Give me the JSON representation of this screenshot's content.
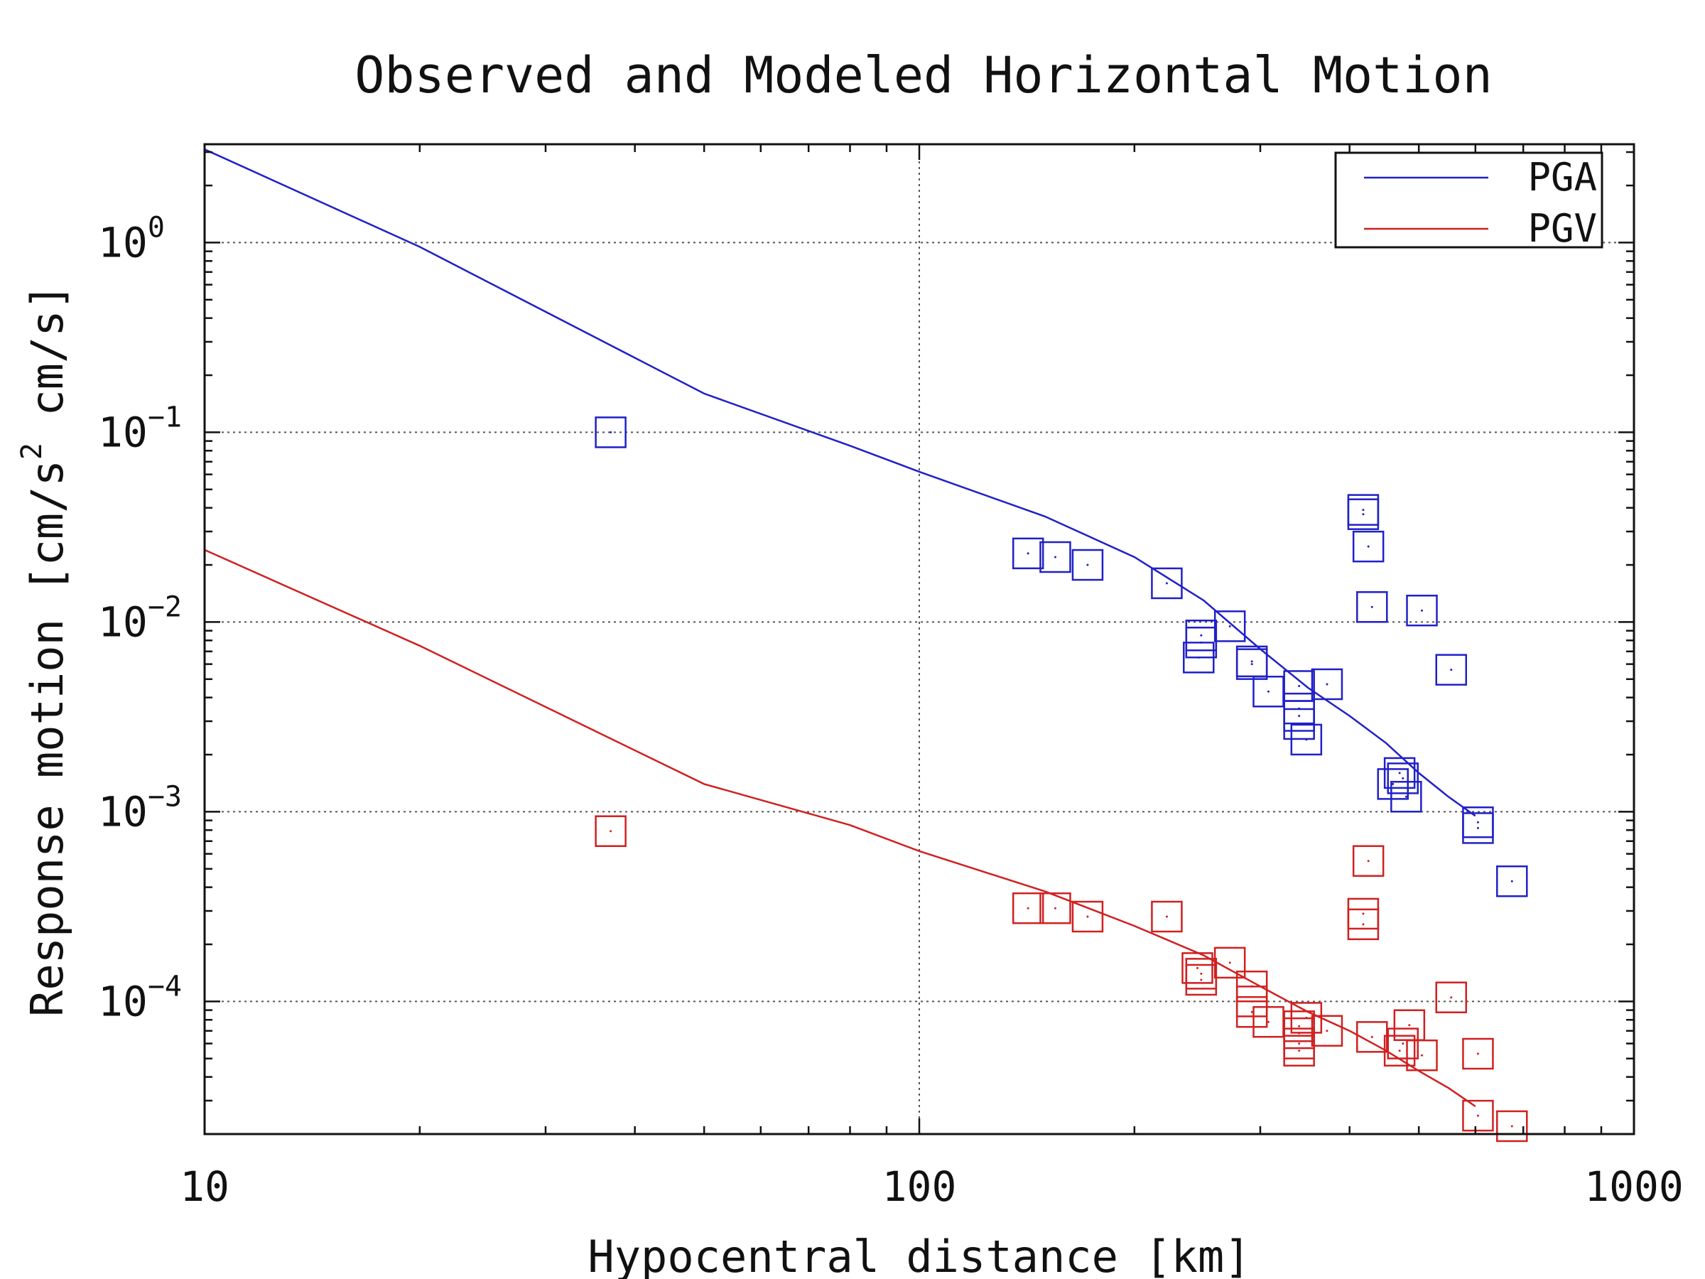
{
  "chart_data": {
    "type": "scatter",
    "title": "Observed and Modeled Horizontal Motion",
    "xlabel": "Hypocentral distance [km]",
    "ylabel": {
      "pre": "Response motion  [cm/s",
      "sup": "2",
      "post": "  cm/s]"
    },
    "x_scale": "log",
    "y_scale": "log",
    "xlim": [
      10,
      1000
    ],
    "ylim": [
      2e-05,
      3.3
    ],
    "grid": true,
    "legend_position": "top-right",
    "x_ticks": [
      {
        "value": 10,
        "label": "10"
      },
      {
        "value": 100,
        "label": "100"
      },
      {
        "value": 1000,
        "label": "1000"
      }
    ],
    "y_ticks": [
      {
        "value": 1,
        "base": "10",
        "exp": "0"
      },
      {
        "value": 0.1,
        "base": "10",
        "exp": "−1"
      },
      {
        "value": 0.01,
        "base": "10",
        "exp": "−2"
      },
      {
        "value": 0.001,
        "base": "10",
        "exp": "−3"
      },
      {
        "value": 0.0001,
        "base": "10",
        "exp": "−4"
      }
    ],
    "series": [
      {
        "name": "PGA",
        "color": "#2020c8",
        "model_line": [
          [
            10,
            3.1
          ],
          [
            20,
            0.95
          ],
          [
            50,
            0.16
          ],
          [
            80,
            0.085
          ],
          [
            100,
            0.062
          ],
          [
            150,
            0.036
          ],
          [
            200,
            0.022
          ],
          [
            250,
            0.013
          ],
          [
            300,
            0.0072
          ],
          [
            350,
            0.0045
          ],
          [
            400,
            0.0032
          ],
          [
            450,
            0.0023
          ],
          [
            500,
            0.0016
          ],
          [
            550,
            0.0012
          ],
          [
            600,
            0.00095
          ]
        ],
        "observed": [
          [
            37,
            0.1
          ],
          [
            142,
            0.023
          ],
          [
            155,
            0.022
          ],
          [
            172,
            0.02
          ],
          [
            222,
            0.016
          ],
          [
            248,
            0.0085
          ],
          [
            248,
            0.0078
          ],
          [
            246,
            0.0065
          ],
          [
            272,
            0.0095
          ],
          [
            292,
            0.0062
          ],
          [
            292,
            0.006
          ],
          [
            308,
            0.0043
          ],
          [
            340,
            0.0046
          ],
          [
            340,
            0.0035
          ],
          [
            340,
            0.0032
          ],
          [
            340,
            0.0029
          ],
          [
            348,
            0.0024
          ],
          [
            372,
            0.0047
          ],
          [
            418,
            0.039
          ],
          [
            418,
            0.037
          ],
          [
            425,
            0.025
          ],
          [
            430,
            0.012
          ],
          [
            505,
            0.0115
          ],
          [
            555,
            0.0056
          ],
          [
            470,
            0.0016
          ],
          [
            475,
            0.0015
          ],
          [
            460,
            0.0014
          ],
          [
            480,
            0.0012
          ],
          [
            605,
            0.00088
          ],
          [
            605,
            0.00082
          ],
          [
            675,
            0.00043
          ]
        ]
      },
      {
        "name": "PGV",
        "color": "#d02020",
        "model_line": [
          [
            10,
            0.024
          ],
          [
            20,
            0.0075
          ],
          [
            50,
            0.0014
          ],
          [
            80,
            0.00085
          ],
          [
            100,
            0.00062
          ],
          [
            150,
            0.00038
          ],
          [
            200,
            0.00025
          ],
          [
            250,
            0.000175
          ],
          [
            300,
            0.00012
          ],
          [
            350,
            8.8e-05
          ],
          [
            400,
            7e-05
          ],
          [
            450,
            5.5e-05
          ],
          [
            500,
            4.3e-05
          ],
          [
            550,
            3.5e-05
          ],
          [
            600,
            2.8e-05
          ]
        ],
        "observed": [
          [
            37,
            0.00079
          ],
          [
            142,
            0.00031
          ],
          [
            155,
            0.00031
          ],
          [
            172,
            0.00028
          ],
          [
            222,
            0.00028
          ],
          [
            245,
            0.00015
          ],
          [
            248,
            0.00014
          ],
          [
            248,
            0.00013
          ],
          [
            272,
            0.00016
          ],
          [
            292,
            0.00012
          ],
          [
            292,
            0.0001
          ],
          [
            292,
            8.8e-05
          ],
          [
            308,
            7.8e-05
          ],
          [
            340,
            7.4e-05
          ],
          [
            340,
            6.8e-05
          ],
          [
            340,
            6e-05
          ],
          [
            340,
            5.5e-05
          ],
          [
            348,
            8.2e-05
          ],
          [
            372,
            7e-05
          ],
          [
            418,
            0.00029
          ],
          [
            418,
            0.000255
          ],
          [
            425,
            0.00055
          ],
          [
            430,
            6.5e-05
          ],
          [
            470,
            5.5e-05
          ],
          [
            475,
            6e-05
          ],
          [
            485,
            7.5e-05
          ],
          [
            505,
            5.2e-05
          ],
          [
            555,
            0.000105
          ],
          [
            605,
            5.3e-05
          ],
          [
            605,
            2.5e-05
          ],
          [
            675,
            2.2e-05
          ]
        ]
      }
    ]
  }
}
